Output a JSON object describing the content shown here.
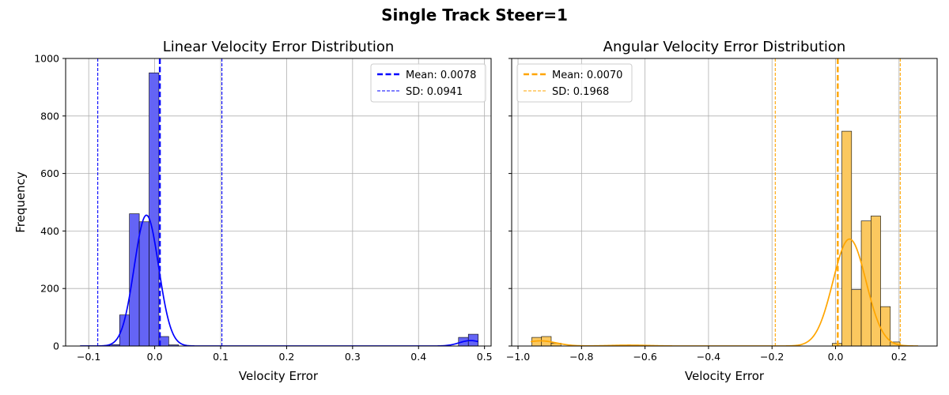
{
  "figure": {
    "suptitle": "Single Track Steer=1"
  },
  "chart_data": [
    {
      "type": "bar",
      "title": "Linear Velocity Error Distribution",
      "xlabel": "Velocity Error",
      "ylabel": "Frequency",
      "xlim": [
        -0.135,
        0.51
      ],
      "ylim": [
        0,
        1000
      ],
      "xticks": [
        -0.1,
        0.0,
        0.1,
        0.2,
        0.3,
        0.4,
        0.5
      ],
      "xtick_labels": [
        "−0.1",
        "0.0",
        "0.1",
        "0.2",
        "0.3",
        "0.4",
        "0.5"
      ],
      "yticks": [
        0,
        200,
        400,
        600,
        800,
        1000
      ],
      "ytick_labels": [
        "0",
        "200",
        "400",
        "600",
        "800",
        "1000"
      ],
      "grid": true,
      "legend_placement": "top-right",
      "color": "#0000ff",
      "bar_fill": "#6464f5",
      "bin_width": 0.0149,
      "bins_left": [
        -0.1128,
        -0.0979,
        -0.083,
        -0.0681,
        -0.0532,
        -0.0383,
        -0.0234,
        -0.0085,
        0.0064,
        0.0213,
        0.4606,
        0.4755
      ],
      "counts": [
        1,
        1,
        2,
        5,
        108,
        460,
        432,
        950,
        33,
        4,
        30,
        41
      ],
      "kde": {
        "peaks": [
          {
            "mu": -0.0125,
            "sigma": 0.0185,
            "amp": 455
          },
          {
            "mu": 0.479,
            "sigma": 0.017,
            "amp": 19
          }
        ],
        "range": [
          -0.113,
          0.49
        ]
      },
      "mean": {
        "value": 0.0078,
        "label": "Mean: 0.0078"
      },
      "sd_lines": {
        "values": [
          -0.0863,
          0.1019
        ],
        "label": "SD: 0.0941"
      }
    },
    {
      "type": "bar",
      "title": "Angular Velocity Error Distribution",
      "xlabel": "Velocity Error",
      "ylabel": "",
      "xlim": [
        -1.02,
        0.32
      ],
      "ylim": [
        0,
        1000
      ],
      "xticks": [
        -1.0,
        -0.8,
        -0.6,
        -0.4,
        -0.2,
        0.0,
        0.2
      ],
      "xtick_labels": [
        "−1.0",
        "−0.8",
        "−0.6",
        "−0.4",
        "−0.2",
        "0.0",
        "0.2"
      ],
      "yticks": [
        0,
        200,
        400,
        600,
        800,
        1000
      ],
      "ytick_labels": [
        "",
        "",
        "",
        "",
        "",
        ""
      ],
      "grid": true,
      "legend_placement": "top-left",
      "color": "#ffa500",
      "bar_fill": "#fbc85f",
      "bin_width": 0.0305,
      "bins_left": [
        -0.9565,
        -0.926,
        -0.8955,
        -0.0105,
        0.02,
        0.0505,
        0.081,
        0.1115,
        0.142,
        0.1725
      ],
      "counts": [
        30,
        33,
        10,
        9,
        747,
        196,
        435,
        452,
        137,
        14
      ],
      "kde": {
        "peaks": [
          {
            "mu": 0.044,
            "sigma": 0.052,
            "amp": 372
          },
          {
            "mu": -0.93,
            "sigma": 0.05,
            "amp": 18
          },
          {
            "mu": -0.65,
            "sigma": 0.06,
            "amp": 3
          }
        ],
        "range": [
          -0.96,
          0.26
        ]
      },
      "mean": {
        "value": 0.007,
        "label": "Mean: 0.0070"
      },
      "sd_lines": {
        "values": [
          -0.1898,
          0.2038
        ],
        "label": "SD: 0.1968"
      }
    }
  ]
}
